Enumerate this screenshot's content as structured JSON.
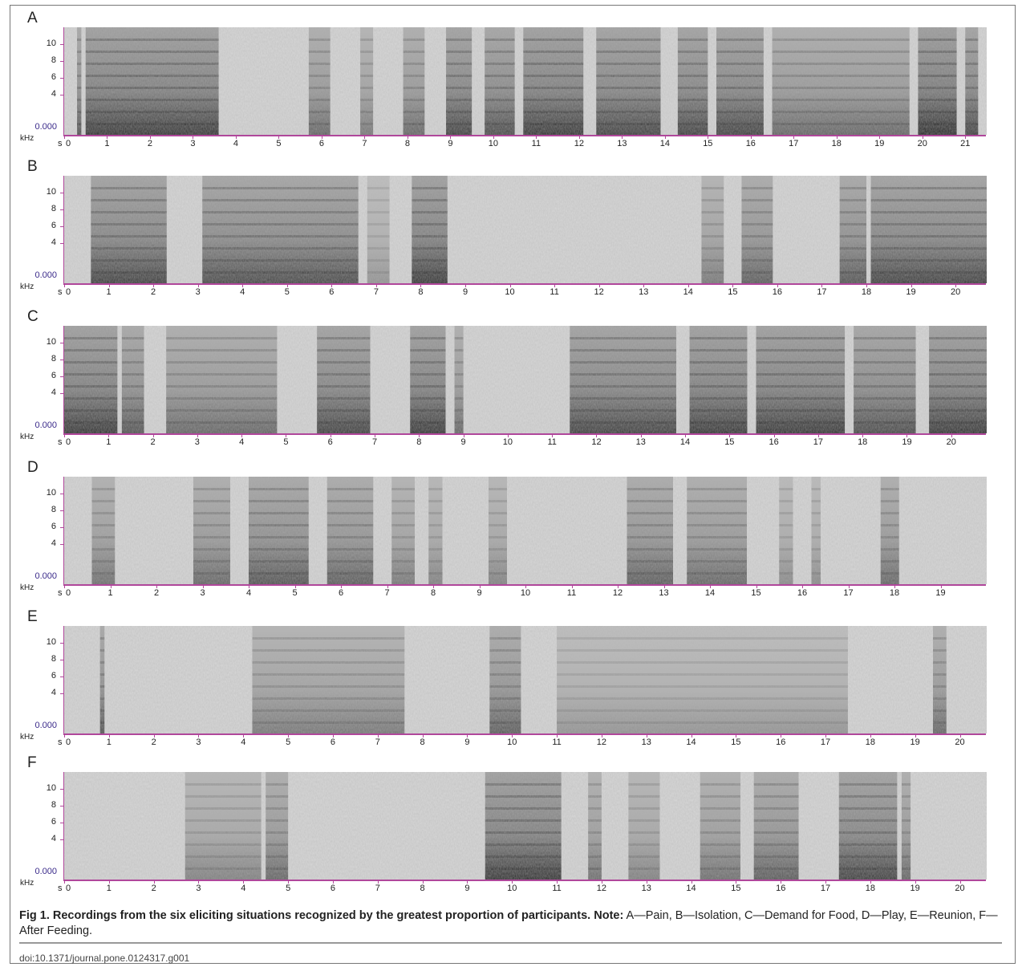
{
  "figure": {
    "y_ticks": [
      "10",
      "8",
      "6",
      "4"
    ],
    "y_zero_label": "0.000",
    "y_unit_label": "kHz",
    "x_start_prefix": "s",
    "panels": [
      {
        "letter": "A",
        "x_labels": [
          "0",
          "1",
          "2",
          "3",
          "4",
          "5",
          "6",
          "7",
          "8",
          "9",
          "10",
          "11",
          "12",
          "13",
          "14",
          "15",
          "16",
          "17",
          "18",
          "19",
          "20",
          "21"
        ],
        "duration": 21.5,
        "segments": [
          [
            0.3,
            0.4,
            0.7
          ],
          [
            0.5,
            3.6,
            0.85
          ],
          [
            5.7,
            6.2,
            0.6
          ],
          [
            6.9,
            7.2,
            0.5
          ],
          [
            7.9,
            8.4,
            0.6
          ],
          [
            8.9,
            9.5,
            0.8
          ],
          [
            9.8,
            10.5,
            0.75
          ],
          [
            10.7,
            12.1,
            0.85
          ],
          [
            12.4,
            13.9,
            0.8
          ],
          [
            14.3,
            15.0,
            0.8
          ],
          [
            15.2,
            16.3,
            0.8
          ],
          [
            16.5,
            19.7,
            0.6
          ],
          [
            19.9,
            20.8,
            0.9
          ],
          [
            21.0,
            21.3,
            0.8
          ]
        ]
      },
      {
        "letter": "B",
        "x_labels": [
          "0",
          "1",
          "2",
          "3",
          "4",
          "5",
          "6",
          "7",
          "8",
          "9",
          "10",
          "11",
          "12",
          "13",
          "14",
          "15",
          "16",
          "17",
          "18",
          "19",
          "20"
        ],
        "duration": 20.7,
        "segments": [
          [
            0.6,
            2.3,
            0.8
          ],
          [
            3.1,
            6.6,
            0.75
          ],
          [
            6.8,
            7.3,
            0.35
          ],
          [
            7.8,
            8.6,
            0.85
          ],
          [
            14.3,
            14.8,
            0.5
          ],
          [
            15.2,
            15.9,
            0.65
          ],
          [
            17.4,
            18.0,
            0.7
          ],
          [
            18.1,
            20.7,
            0.8
          ]
        ]
      },
      {
        "letter": "C",
        "x_labels": [
          "0",
          "1",
          "2",
          "3",
          "4",
          "5",
          "6",
          "7",
          "8",
          "9",
          "10",
          "11",
          "12",
          "13",
          "14",
          "15",
          "16",
          "17",
          "18",
          "19",
          "20"
        ],
        "duration": 20.8,
        "segments": [
          [
            0.0,
            1.2,
            0.85
          ],
          [
            1.3,
            1.8,
            0.7
          ],
          [
            2.3,
            4.8,
            0.6
          ],
          [
            5.7,
            6.9,
            0.8
          ],
          [
            7.8,
            8.6,
            0.85
          ],
          [
            8.8,
            9.0,
            0.6
          ],
          [
            11.4,
            13.8,
            0.8
          ],
          [
            14.1,
            15.4,
            0.85
          ],
          [
            15.6,
            17.6,
            0.85
          ],
          [
            17.8,
            19.2,
            0.75
          ],
          [
            19.5,
            20.8,
            0.85
          ]
        ]
      },
      {
        "letter": "D",
        "x_labels": [
          "0",
          "1",
          "2",
          "3",
          "4",
          "5",
          "6",
          "7",
          "8",
          "9",
          "10",
          "11",
          "12",
          "13",
          "14",
          "15",
          "16",
          "17",
          "18",
          "19"
        ],
        "duration": 20.0,
        "segments": [
          [
            0.6,
            1.1,
            0.55
          ],
          [
            2.8,
            3.6,
            0.6
          ],
          [
            4.0,
            5.3,
            0.7
          ],
          [
            5.7,
            6.7,
            0.65
          ],
          [
            7.1,
            7.6,
            0.5
          ],
          [
            7.9,
            8.2,
            0.45
          ],
          [
            9.2,
            9.6,
            0.45
          ],
          [
            12.2,
            13.2,
            0.65
          ],
          [
            13.5,
            14.8,
            0.6
          ],
          [
            15.5,
            15.8,
            0.4
          ],
          [
            16.2,
            16.4,
            0.4
          ],
          [
            17.7,
            18.1,
            0.6
          ]
        ]
      },
      {
        "letter": "E",
        "x_labels": [
          "0",
          "1",
          "2",
          "3",
          "4",
          "5",
          "6",
          "7",
          "8",
          "9",
          "10",
          "11",
          "12",
          "13",
          "14",
          "15",
          "16",
          "17",
          "18",
          "19",
          "20"
        ],
        "duration": 20.6,
        "segments": [
          [
            0.8,
            0.9,
            0.7
          ],
          [
            4.2,
            7.6,
            0.5
          ],
          [
            9.5,
            10.2,
            0.65
          ],
          [
            11.0,
            17.5,
            0.35
          ],
          [
            19.4,
            19.7,
            0.6
          ]
        ]
      },
      {
        "letter": "F",
        "x_labels": [
          "0",
          "1",
          "2",
          "3",
          "4",
          "5",
          "6",
          "7",
          "8",
          "9",
          "10",
          "11",
          "12",
          "13",
          "14",
          "15",
          "16",
          "17",
          "18",
          "19",
          "20"
        ],
        "duration": 20.6,
        "segments": [
          [
            2.7,
            4.4,
            0.45
          ],
          [
            4.5,
            5.0,
            0.6
          ],
          [
            9.4,
            11.1,
            0.85
          ],
          [
            11.7,
            12.0,
            0.55
          ],
          [
            12.6,
            13.3,
            0.45
          ],
          [
            14.2,
            15.1,
            0.55
          ],
          [
            15.4,
            16.4,
            0.65
          ],
          [
            17.3,
            18.6,
            0.8
          ],
          [
            18.7,
            18.9,
            0.6
          ]
        ]
      }
    ]
  },
  "caption": {
    "bold": "Fig 1. Recordings from the six eliciting situations recognized by the greatest proportion of participants. Note:",
    "normal": " A—Pain, B—Isolation, C—Demand for Food, D—Play, E—Reunion, F—After Feeding."
  },
  "doi": "doi:10.1371/journal.pone.0124317.g001"
}
